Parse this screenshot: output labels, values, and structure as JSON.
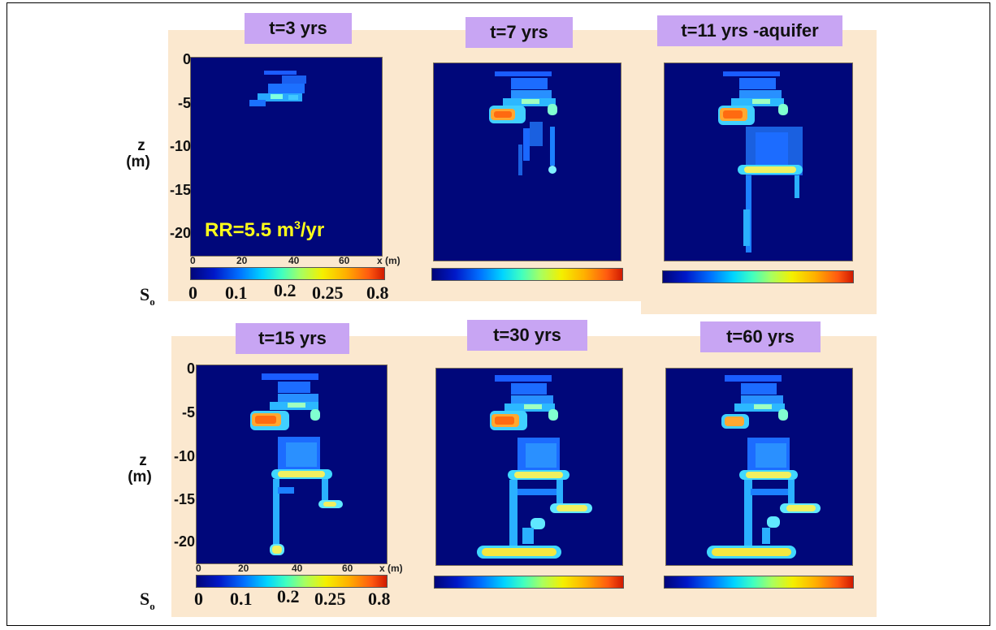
{
  "titles": [
    "t=3 yrs",
    "t=7 yrs",
    "t=11 yrs -aquifer",
    "t=15 yrs",
    "t=30 yrs",
    "t=60 yrs"
  ],
  "z_axis": {
    "label_z": "z",
    "label_unit": "(m)",
    "ticks": [
      "0",
      "-5",
      "-10",
      "-15",
      "-20"
    ]
  },
  "x_axis": {
    "ticks": [
      "0",
      "20",
      "40",
      "60"
    ],
    "unit": "x (m)"
  },
  "colorbar": {
    "label": "S",
    "label_sub": "o",
    "ticks": [
      "0",
      "0.1",
      "0.2",
      "0.25",
      "0.8"
    ]
  },
  "annotation": {
    "text": "RR=5.5 m",
    "superscript": "3",
    "suffix": "/yr"
  },
  "colors": {
    "background_field": "#00077a",
    "panel_background": "#fbe8cf",
    "title_fill": "#c8a5f3",
    "annotation_text": "#ffff1a"
  }
}
